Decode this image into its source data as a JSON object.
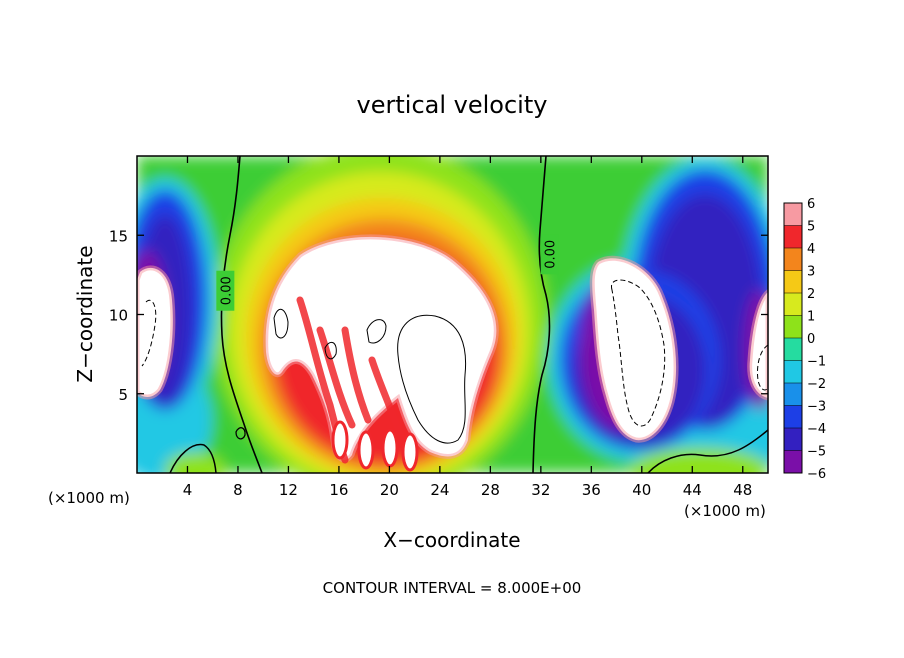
{
  "chart_data": {
    "type": "heatmap",
    "title": "vertical velocity",
    "xlabel": "X−coordinate",
    "ylabel": "Z−coordinate",
    "x_unit_left": "(×1000 m)",
    "x_unit_right": "(×1000 m)",
    "xlim": [
      0,
      50
    ],
    "ylim": [
      0,
      20
    ],
    "x_ticks": [
      4,
      8,
      12,
      16,
      20,
      24,
      28,
      32,
      36,
      40,
      44,
      48
    ],
    "y_ticks": [
      5,
      10,
      15
    ],
    "colorbar": {
      "ticks": [
        6,
        5,
        4,
        3,
        2,
        1,
        0,
        -1,
        -2,
        -3,
        -4,
        -5,
        -6
      ],
      "tick_labels": [
        "6",
        "5",
        "4",
        "3",
        "2",
        "1",
        "0",
        "−1",
        "−2",
        "−3",
        "−4",
        "−5",
        "−6"
      ],
      "range": [
        -6,
        6
      ]
    },
    "zero_contour_label": "0.00",
    "zero_contour_labels": [
      {
        "x": 7,
        "z": 11.5
      },
      {
        "x": 32.7,
        "z": 13.8
      }
    ],
    "footer": "CONTOUR INTERVAL = 8.000E+00"
  }
}
